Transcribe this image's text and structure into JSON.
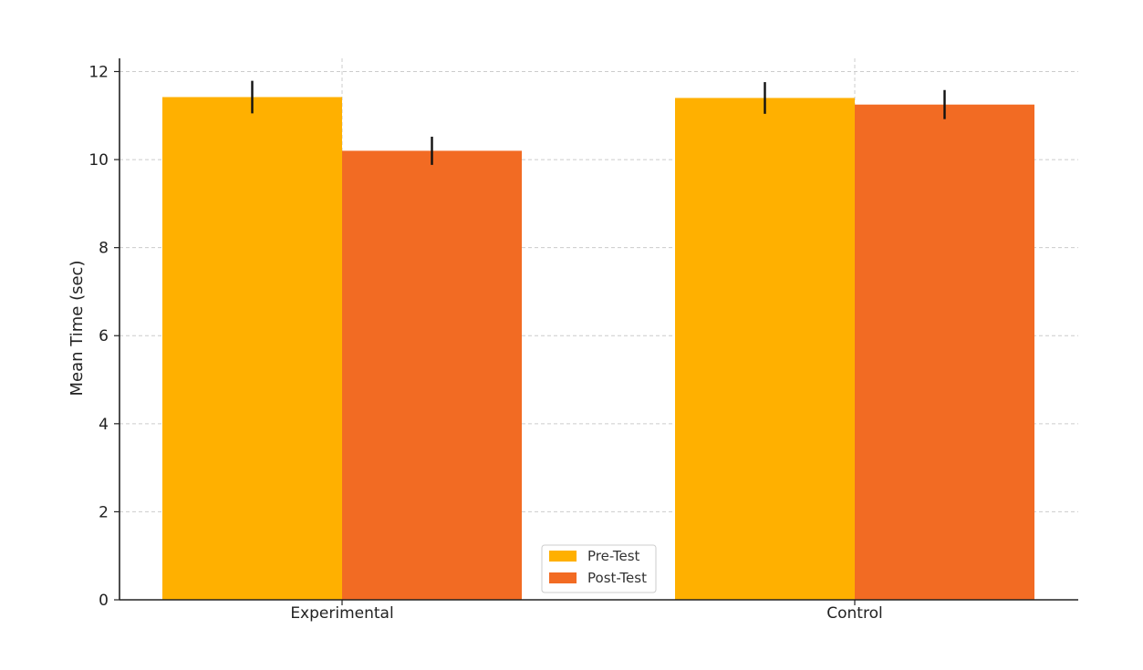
{
  "chart_data": {
    "type": "bar",
    "title": "",
    "xlabel": "",
    "ylabel": "Mean Time (sec)",
    "categories": [
      "Experimental",
      "Control"
    ],
    "series": [
      {
        "name": "Pre-Test",
        "color": "#FFB000",
        "values": [
          11.42,
          11.4
        ],
        "error": [
          0.37,
          0.36
        ]
      },
      {
        "name": "Post-Test",
        "color": "#F26B23",
        "values": [
          10.2,
          11.25
        ],
        "error": [
          0.32,
          0.33
        ]
      }
    ],
    "ylim": [
      0,
      12.3
    ],
    "yticks": [
      0,
      2,
      4,
      6,
      8,
      10,
      12
    ],
    "grid": true,
    "legend_position": "bottom-center"
  }
}
